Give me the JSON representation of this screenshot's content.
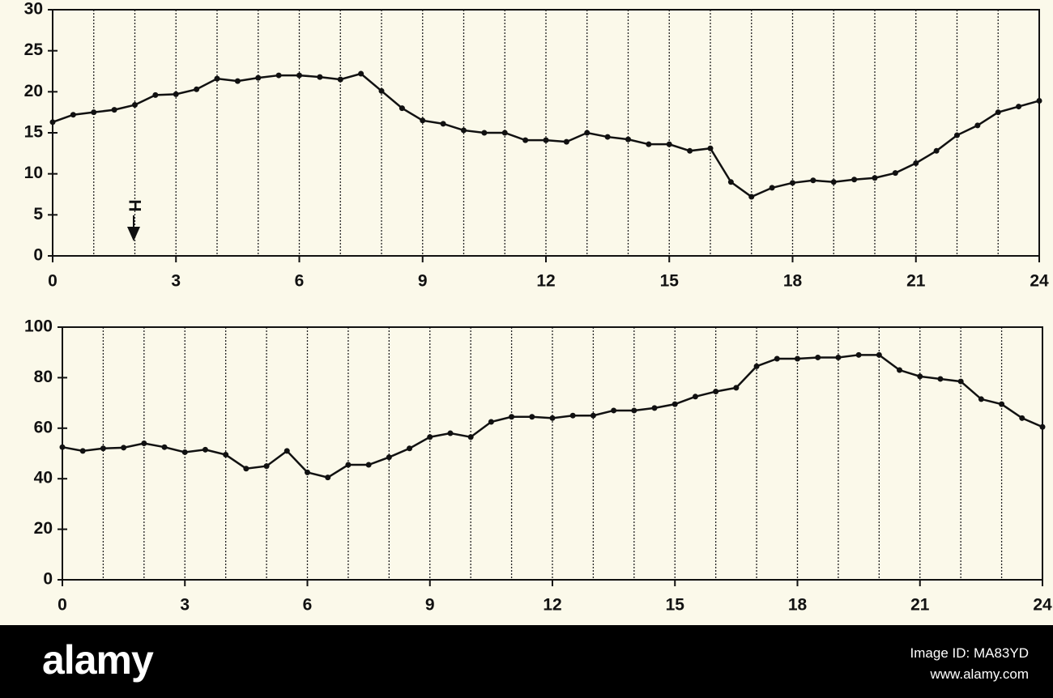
{
  "chart_data": [
    {
      "type": "line",
      "annotation": "H",
      "color": "#111111",
      "x": [
        0,
        0.5,
        1,
        1.5,
        2,
        2.5,
        3,
        3.5,
        4,
        4.5,
        5,
        5.5,
        6,
        6.5,
        7,
        7.5,
        8,
        8.5,
        9,
        9.5,
        10,
        10.5,
        11,
        11.5,
        12,
        12.5,
        13,
        13.5,
        14,
        14.5,
        15,
        15.5,
        16,
        16.5,
        17,
        17.5,
        18,
        18.5,
        19,
        19.5,
        20,
        20.5,
        21,
        21.5,
        22,
        22.5,
        23,
        23.5,
        24
      ],
      "values": [
        16.3,
        17.2,
        17.5,
        17.8,
        18.4,
        19.6,
        19.7,
        20.3,
        21.6,
        21.3,
        21.7,
        22.0,
        22.0,
        21.8,
        21.5,
        22.2,
        20.1,
        18.0,
        16.5,
        16.1,
        15.3,
        15.0,
        15.0,
        14.1,
        14.1,
        13.9,
        15.0,
        14.5,
        14.2,
        13.6,
        13.6,
        12.8,
        13.1,
        9.0,
        7.2,
        8.3,
        8.9,
        9.2,
        9.0,
        9.3,
        9.5,
        10.1,
        11.3,
        12.8,
        14.7,
        15.9,
        17.5,
        18.2,
        18.9
      ],
      "xlim": [
        0,
        24
      ],
      "xticks": [
        0,
        3,
        6,
        9,
        12,
        15,
        18,
        21,
        24
      ],
      "xgrid": [
        1,
        2,
        3,
        4,
        5,
        6,
        7,
        8,
        9,
        10,
        11,
        12,
        13,
        14,
        15,
        16,
        17,
        18,
        19,
        20,
        21,
        22,
        23
      ],
      "ylim": [
        0,
        30
      ],
      "yticks": [
        0,
        5,
        10,
        15,
        20,
        25,
        30
      ]
    },
    {
      "type": "line",
      "color": "#111111",
      "x": [
        0,
        0.5,
        1,
        1.5,
        2,
        2.5,
        3,
        3.5,
        4,
        4.5,
        5,
        5.5,
        6,
        6.5,
        7,
        7.5,
        8,
        8.5,
        9,
        9.5,
        10,
        10.5,
        11,
        11.5,
        12,
        12.5,
        13,
        13.5,
        14,
        14.5,
        15,
        15.5,
        16,
        16.5,
        17,
        17.5,
        18,
        18.5,
        19,
        19.5,
        20,
        20.5,
        21,
        21.5,
        22,
        22.5,
        23,
        23.5,
        24
      ],
      "values": [
        52.5,
        51,
        52,
        52.3,
        54,
        52.5,
        50.5,
        51.5,
        49.5,
        44,
        45,
        51,
        42.5,
        40.5,
        45.5,
        45.5,
        48.5,
        52,
        56.5,
        58,
        56.5,
        62.5,
        64.5,
        64.5,
        64,
        65,
        65,
        67,
        67,
        68,
        69.5,
        72.5,
        74.5,
        76,
        84.5,
        87.5,
        87.5,
        88,
        88,
        89,
        89,
        83,
        80.5,
        79.5,
        78.5,
        71.5,
        69.5,
        64,
        60.5
      ],
      "xlim": [
        0,
        24
      ],
      "xticks": [
        0,
        3,
        6,
        9,
        12,
        15,
        18,
        21,
        24
      ],
      "xgrid": [
        1,
        2,
        3,
        4,
        5,
        6,
        7,
        8,
        9,
        10,
        11,
        12,
        13,
        14,
        15,
        16,
        17,
        18,
        19,
        20,
        21,
        22,
        23
      ],
      "ylim": [
        0,
        100
      ],
      "yticks": [
        0,
        20,
        40,
        60,
        80,
        100
      ]
    }
  ],
  "footer": {
    "logo": "alamy",
    "image_id": "Image ID: MA83YD",
    "url": "www.alamy.com"
  }
}
